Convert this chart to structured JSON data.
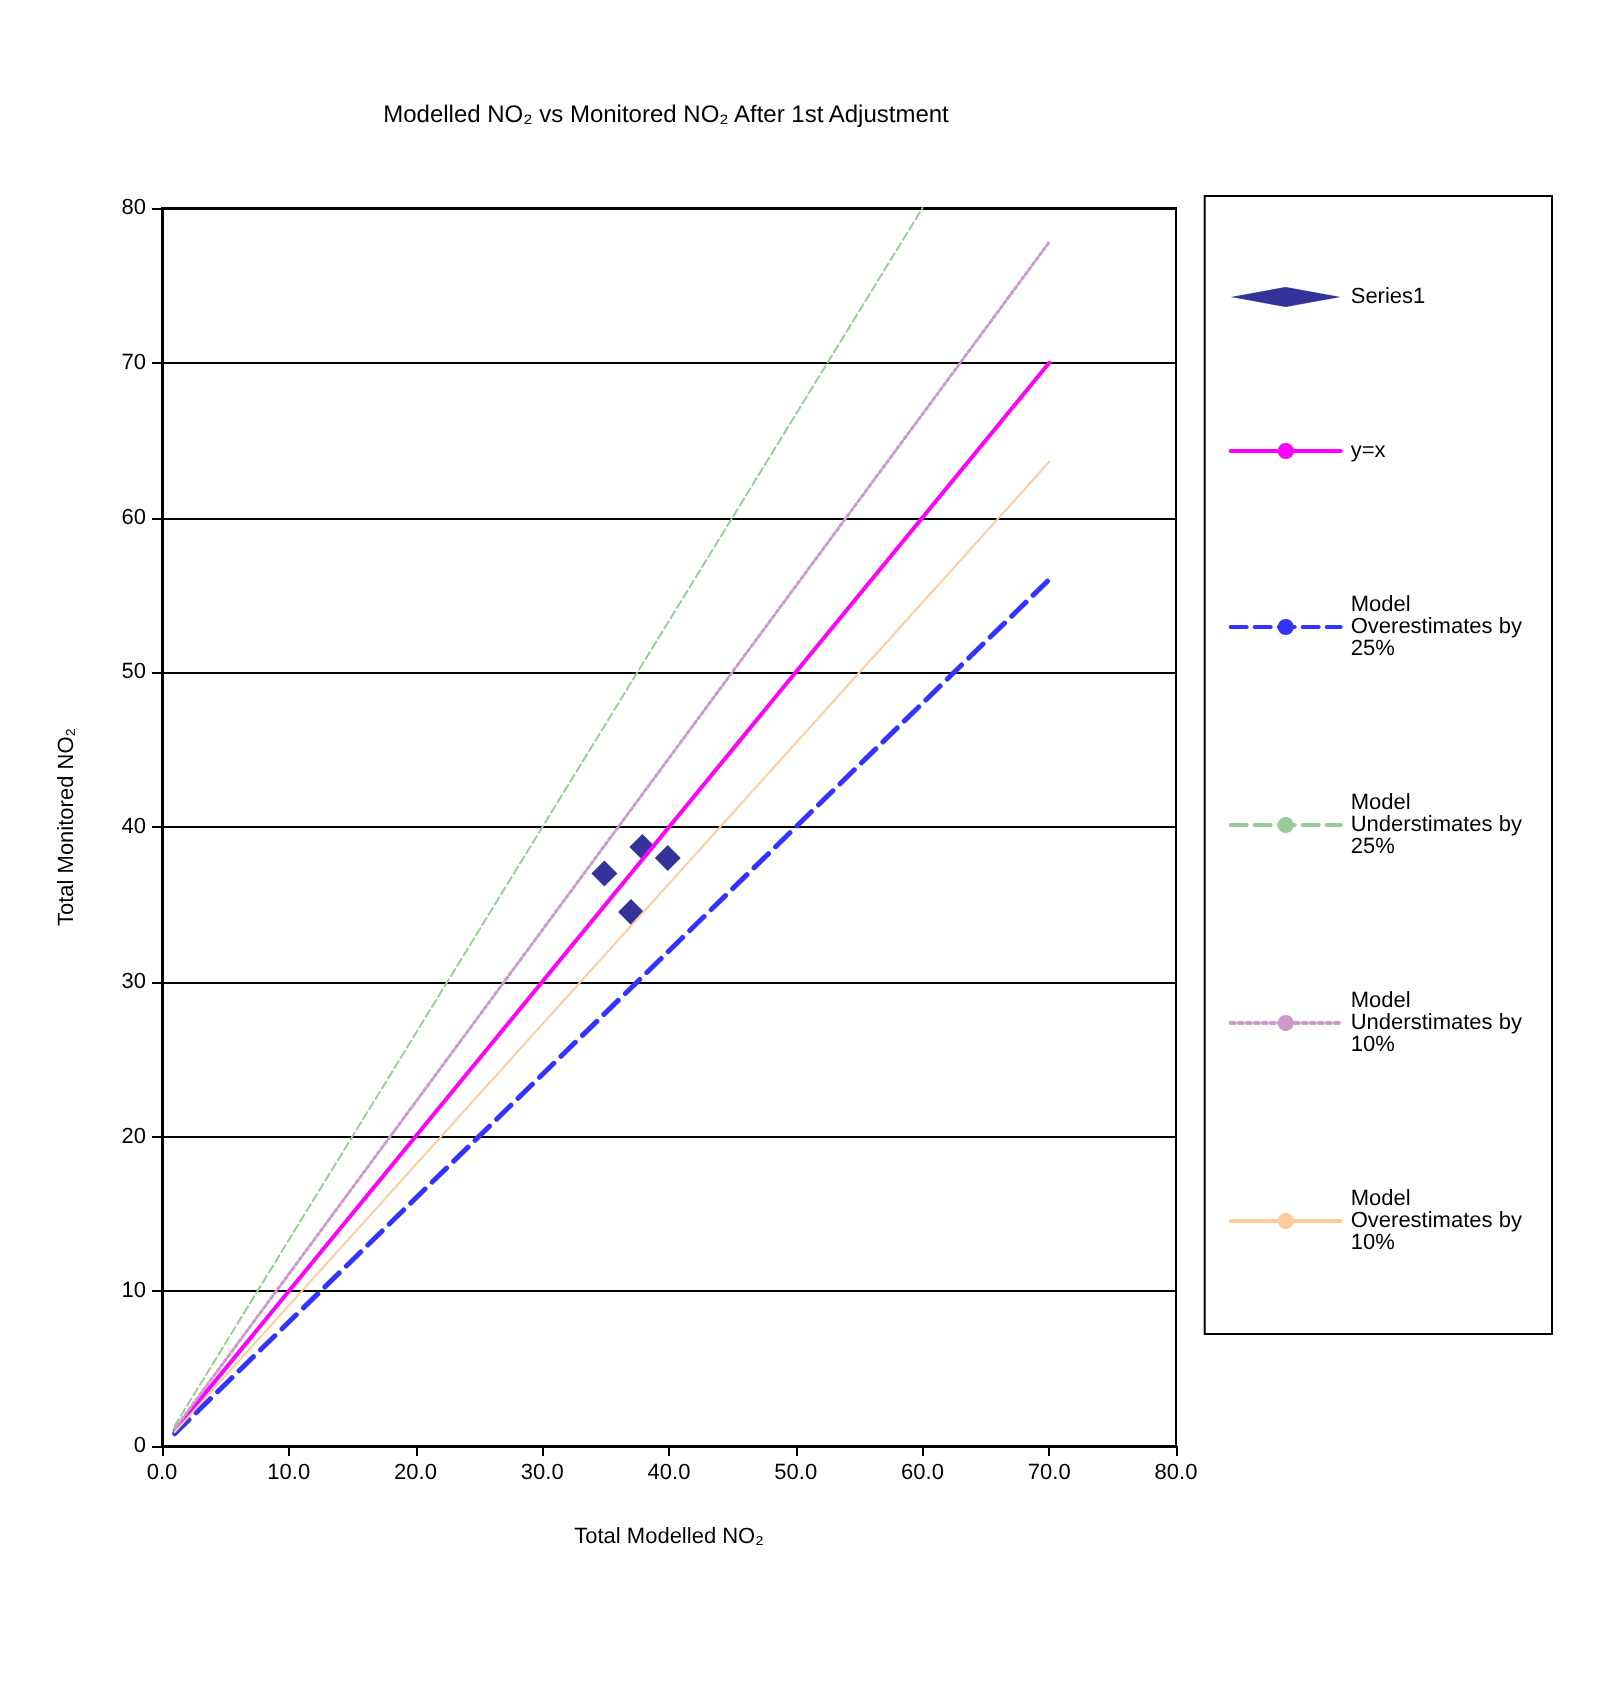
{
  "chart_data": {
    "type": "line",
    "title": "Modelled NO₂ vs Monitored NO₂ After 1st Adjustment",
    "xlabel": "Total Modelled NO₂",
    "ylabel": "Total Monitored NO₂",
    "xlim": [
      0,
      80
    ],
    "xticks": [
      {
        "value": 0,
        "label": "0.0"
      },
      {
        "value": 10,
        "label": "10.0"
      },
      {
        "value": 20,
        "label": "20.0"
      },
      {
        "value": 30,
        "label": "30.0"
      },
      {
        "value": 40,
        "label": "40.0"
      },
      {
        "value": 50,
        "label": "50.0"
      },
      {
        "value": 60,
        "label": "60.0"
      },
      {
        "value": 70,
        "label": "70.0"
      },
      {
        "value": 80,
        "label": "80.0"
      }
    ],
    "ylim": [
      0,
      80
    ],
    "yticks": [
      0,
      10,
      20,
      30,
      40,
      50,
      60,
      70,
      80
    ],
    "grid": "y",
    "legend": "right",
    "series": [
      {
        "name": "Series1",
        "type": "scatter",
        "marker": "diamond",
        "color": "#000080",
        "x": [
          34.9,
          37.9,
          39.9,
          37.0
        ],
        "values": [
          37.0,
          38.7,
          38.0,
          34.5
        ]
      },
      {
        "name": "y=x",
        "line_style": "solid",
        "color": "#ff00ff",
        "x": [
          1,
          70
        ],
        "values": [
          1,
          70
        ]
      },
      {
        "name": "Model Overestimates by 25%",
        "type": "line",
        "line_style": "dashed",
        "color": "#3333ff",
        "x": [
          1,
          70
        ],
        "values": [
          0.8,
          56
        ]
      },
      {
        "name": "Model Understimates by 25%",
        "type": "line",
        "line_style": "dashed",
        "color": "#99cc99",
        "x": [
          1,
          60
        ],
        "values": [
          1.3,
          80
        ]
      },
      {
        "name": "Model Understimates by 10%",
        "type": "line",
        "line_style": "dotted",
        "color": "#cc99cc",
        "x": [
          1,
          70
        ],
        "values": [
          1.1,
          77.8
        ]
      },
      {
        "name": "Model Overestimates by 10%",
        "type": "line",
        "line_style": "solid",
        "color": "#ffcc99",
        "x": [
          1,
          70
        ],
        "values": [
          0.9,
          63.6
        ]
      }
    ]
  }
}
